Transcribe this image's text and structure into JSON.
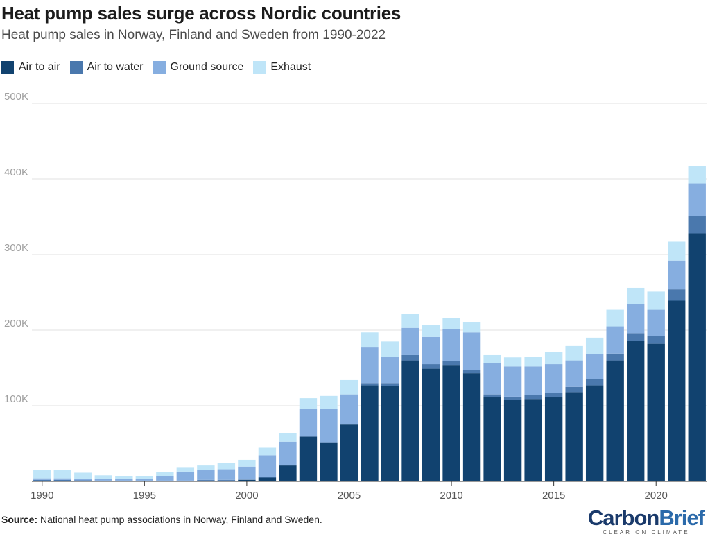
{
  "title": "Heat pump sales surge across Nordic countries",
  "subtitle": "Heat pump sales in Norway, Finland and Sweden from 1990-2022",
  "source_label": "Source:",
  "source_text": " National heat pump associations in Norway, Finland and Sweden.",
  "logo": {
    "part1": "Carbon",
    "part2": "Brief",
    "tagline": "CLEAR ON CLIMATE"
  },
  "chart_data": {
    "type": "bar",
    "stacked": true,
    "categories": [
      1990,
      1991,
      1992,
      1993,
      1994,
      1995,
      1996,
      1997,
      1998,
      1999,
      2000,
      2001,
      2002,
      2003,
      2004,
      2005,
      2006,
      2007,
      2008,
      2009,
      2010,
      2011,
      2012,
      2013,
      2014,
      2015,
      2016,
      2017,
      2018,
      2019,
      2020,
      2021,
      2022
    ],
    "x_ticks": [
      "1990",
      "1995",
      "2000",
      "2005",
      "2010",
      "2015",
      "2020"
    ],
    "y_ticks": [
      "500K",
      "400K",
      "300K",
      "200K",
      "100K"
    ],
    "ylim": [
      0,
      500000
    ],
    "grid": true,
    "legend_position": "top-left",
    "series": [
      {
        "name": "Air to air",
        "color": "#11426f",
        "values": [
          0,
          0,
          0,
          0,
          0,
          0,
          0,
          500,
          1000,
          1000,
          2000,
          5000,
          21000,
          59000,
          51000,
          75000,
          127000,
          126000,
          160000,
          149000,
          154000,
          143000,
          111000,
          108000,
          109000,
          111000,
          118000,
          127000,
          160000,
          186000,
          182000,
          239000,
          328000
        ]
      },
      {
        "name": "Air to water",
        "color": "#4a78ad",
        "values": [
          2000,
          2000,
          1500,
          1000,
          1000,
          1000,
          1000,
          500,
          1000,
          1000,
          500,
          500,
          500,
          1000,
          1000,
          1000,
          3000,
          4000,
          7000,
          6000,
          5000,
          4000,
          4000,
          4000,
          5000,
          6000,
          7000,
          8000,
          9000,
          10000,
          10000,
          15000,
          23000
        ]
      },
      {
        "name": "Ground source",
        "color": "#86aee0",
        "values": [
          2000,
          2000,
          2000,
          2000,
          2000,
          2000,
          6000,
          12000,
          13000,
          14000,
          17000,
          29000,
          31000,
          36000,
          44000,
          39000,
          47000,
          35000,
          36000,
          36000,
          42000,
          50000,
          41000,
          40000,
          38000,
          38000,
          35000,
          33000,
          36000,
          38000,
          35000,
          38000,
          43000
        ]
      },
      {
        "name": "Exhaust",
        "color": "#bfe5f8",
        "values": [
          11000,
          11000,
          8000,
          5000,
          4000,
          4000,
          5000,
          5000,
          6000,
          8000,
          9000,
          10000,
          11000,
          14000,
          17000,
          19000,
          20000,
          20000,
          19000,
          16000,
          15000,
          14000,
          11000,
          12000,
          13000,
          16000,
          19000,
          22000,
          22000,
          22000,
          24000,
          25000,
          23000
        ]
      }
    ]
  }
}
